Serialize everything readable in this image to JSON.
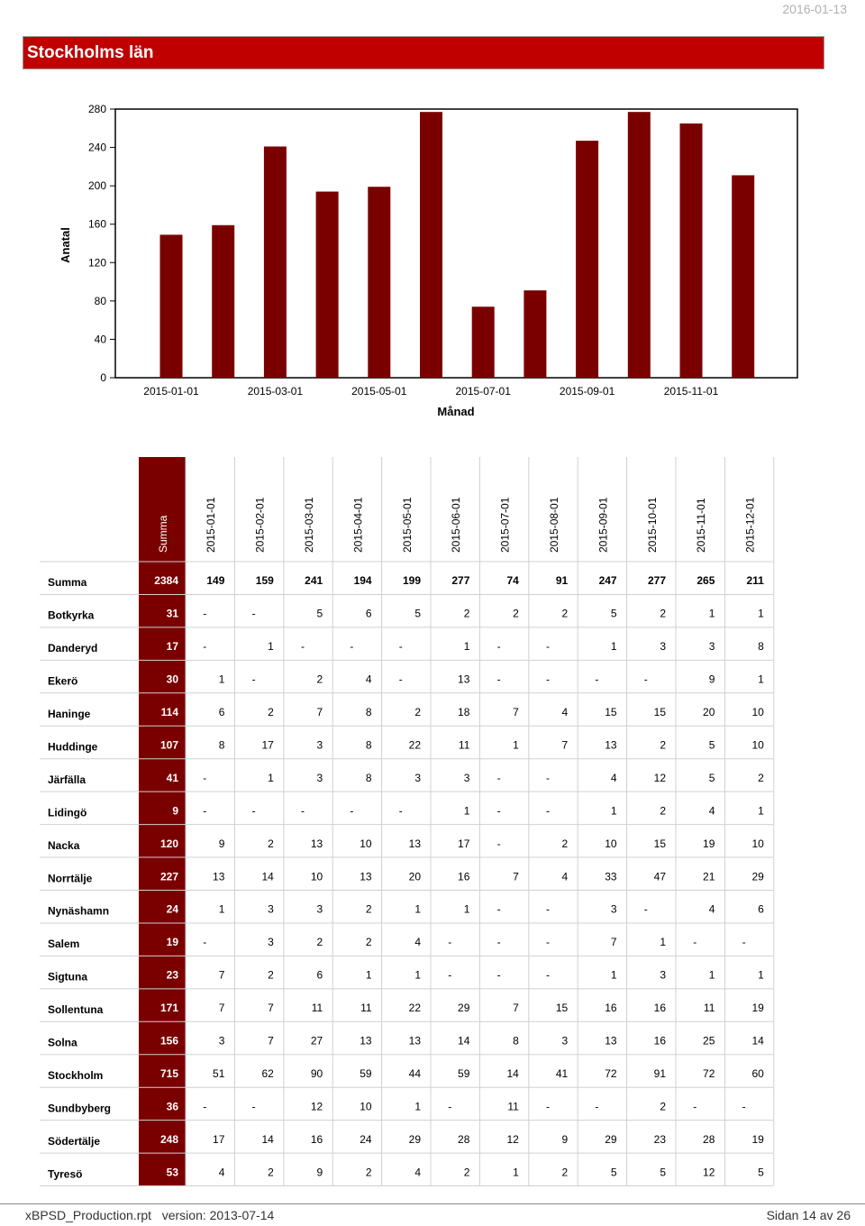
{
  "report_date": "2016-01-13",
  "title": "Stockholms län",
  "colors": {
    "accent": "#c00000",
    "bar": "#7a0000",
    "summa": "#7a0000",
    "summa_text": "#ffffff"
  },
  "chart_data": {
    "type": "bar",
    "xlabel": "Månad",
    "ylabel": "Anatal",
    "ylim": [
      0,
      280
    ],
    "yticks": [
      0,
      40,
      80,
      120,
      160,
      200,
      240,
      280
    ],
    "categories": [
      "2015-01-01",
      "2015-02-01",
      "2015-03-01",
      "2015-04-01",
      "2015-05-01",
      "2015-06-01",
      "2015-07-01",
      "2015-08-01",
      "2015-09-01",
      "2015-10-01",
      "2015-11-01",
      "2015-12-01"
    ],
    "xtick_labels": [
      "2015-01-01",
      "2015-03-01",
      "2015-05-01",
      "2015-07-01",
      "2015-09-01",
      "2015-11-01"
    ],
    "values": [
      149,
      159,
      241,
      194,
      199,
      277,
      74,
      91,
      247,
      277,
      265,
      211
    ],
    "grid": false
  },
  "table": {
    "summa_header": "Summa",
    "months": [
      "2015-01-01",
      "2015-02-01",
      "2015-03-01",
      "2015-04-01",
      "2015-05-01",
      "2015-06-01",
      "2015-07-01",
      "2015-08-01",
      "2015-09-01",
      "2015-10-01",
      "2015-11-01",
      "2015-12-01"
    ],
    "rows": [
      {
        "name": "Summa",
        "total": "2384",
        "vals": [
          "149",
          "159",
          "241",
          "194",
          "199",
          "277",
          "74",
          "91",
          "247",
          "277",
          "265",
          "211"
        ],
        "bold": true
      },
      {
        "name": "Botkyrka",
        "total": "31",
        "vals": [
          "-",
          "-",
          "5",
          "6",
          "5",
          "2",
          "2",
          "2",
          "5",
          "2",
          "1",
          "1"
        ]
      },
      {
        "name": "Danderyd",
        "total": "17",
        "vals": [
          "-",
          "1",
          "-",
          "-",
          "-",
          "1",
          "-",
          "-",
          "1",
          "3",
          "3",
          "8"
        ]
      },
      {
        "name": "Ekerö",
        "total": "30",
        "vals": [
          "1",
          "-",
          "2",
          "4",
          "-",
          "13",
          "-",
          "-",
          "-",
          "-",
          "9",
          "1"
        ]
      },
      {
        "name": "Haninge",
        "total": "114",
        "vals": [
          "6",
          "2",
          "7",
          "8",
          "2",
          "18",
          "7",
          "4",
          "15",
          "15",
          "20",
          "10"
        ]
      },
      {
        "name": "Huddinge",
        "total": "107",
        "vals": [
          "8",
          "17",
          "3",
          "8",
          "22",
          "11",
          "1",
          "7",
          "13",
          "2",
          "5",
          "10"
        ]
      },
      {
        "name": "Järfälla",
        "total": "41",
        "vals": [
          "-",
          "1",
          "3",
          "8",
          "3",
          "3",
          "-",
          "-",
          "4",
          "12",
          "5",
          "2"
        ]
      },
      {
        "name": "Lidingö",
        "total": "9",
        "vals": [
          "-",
          "-",
          "-",
          "-",
          "-",
          "1",
          "-",
          "-",
          "1",
          "2",
          "4",
          "1"
        ]
      },
      {
        "name": "Nacka",
        "total": "120",
        "vals": [
          "9",
          "2",
          "13",
          "10",
          "13",
          "17",
          "-",
          "2",
          "10",
          "15",
          "19",
          "10"
        ]
      },
      {
        "name": "Norrtälje",
        "total": "227",
        "vals": [
          "13",
          "14",
          "10",
          "13",
          "20",
          "16",
          "7",
          "4",
          "33",
          "47",
          "21",
          "29"
        ]
      },
      {
        "name": "Nynäshamn",
        "total": "24",
        "vals": [
          "1",
          "3",
          "3",
          "2",
          "1",
          "1",
          "-",
          "-",
          "3",
          "-",
          "4",
          "6"
        ]
      },
      {
        "name": "Salem",
        "total": "19",
        "vals": [
          "-",
          "3",
          "2",
          "2",
          "4",
          "-",
          "-",
          "-",
          "7",
          "1",
          "-",
          "-"
        ]
      },
      {
        "name": "Sigtuna",
        "total": "23",
        "vals": [
          "7",
          "2",
          "6",
          "1",
          "1",
          "-",
          "-",
          "-",
          "1",
          "3",
          "1",
          "1"
        ]
      },
      {
        "name": "Sollentuna",
        "total": "171",
        "vals": [
          "7",
          "7",
          "11",
          "11",
          "22",
          "29",
          "7",
          "15",
          "16",
          "16",
          "11",
          "19"
        ]
      },
      {
        "name": "Solna",
        "total": "156",
        "vals": [
          "3",
          "7",
          "27",
          "13",
          "13",
          "14",
          "8",
          "3",
          "13",
          "16",
          "25",
          "14"
        ]
      },
      {
        "name": "Stockholm",
        "total": "715",
        "vals": [
          "51",
          "62",
          "90",
          "59",
          "44",
          "59",
          "14",
          "41",
          "72",
          "91",
          "72",
          "60"
        ]
      },
      {
        "name": "Sundbyberg",
        "total": "36",
        "vals": [
          "-",
          "-",
          "12",
          "10",
          "1",
          "-",
          "11",
          "-",
          "-",
          "2",
          "-",
          "-"
        ]
      },
      {
        "name": "Södertälje",
        "total": "248",
        "vals": [
          "17",
          "14",
          "16",
          "24",
          "29",
          "28",
          "12",
          "9",
          "29",
          "23",
          "28",
          "19"
        ]
      },
      {
        "name": "Tyresö",
        "total": "53",
        "vals": [
          "4",
          "2",
          "9",
          "2",
          "4",
          "2",
          "1",
          "2",
          "5",
          "5",
          "12",
          "5"
        ]
      }
    ]
  },
  "footer": {
    "left": "xBPSD_Production.rpt   version: 2013-07-14",
    "right": "Sidan 14 av 26"
  }
}
